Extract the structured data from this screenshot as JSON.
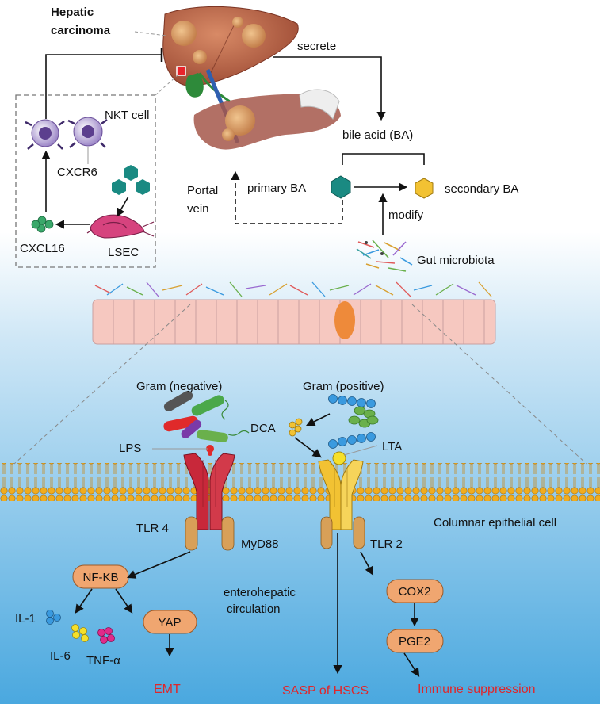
{
  "labels": {
    "hepatic_carcinoma_1": "Hepatic",
    "hepatic_carcinoma_2": "carcinoma",
    "secrete": "secrete",
    "nkt_cell": "NKT cell",
    "bile_acid": "bile acid (BA)",
    "cxcr6": "CXCR6",
    "portal_vein_1": "Portal",
    "portal_vein_2": "vein",
    "primary_ba": "primary BA",
    "secondary_ba": "secondary BA",
    "modify": "modify",
    "cxcl16": "CXCL16",
    "lsec": "LSEC",
    "gut_microbiota": "Gut microbiota",
    "gram_negative": "Gram (negative)",
    "gram_positive": "Gram (positive)",
    "dca": "DCA",
    "lps": "LPS",
    "lta": "LTA",
    "columnar_epithelial_cell": "Columnar epithelial cell",
    "tlr4": "TLR 4",
    "myd88": "MyD88",
    "tlr2": "TLR 2",
    "nfkb": "NF-KB",
    "il1": "IL-1",
    "il6": "IL-6",
    "tnfa": "TNF-α",
    "yap": "YAP",
    "emt": "EMT",
    "enterohepatic_1": "enterohepatic",
    "enterohepatic_2": "circulation",
    "cox2": "COX2",
    "pge2": "PGE2",
    "sasp": "SASP of HSCS",
    "immune_suppression": "Immune suppression"
  },
  "colors": {
    "background_top": "#ffffff",
    "background_bottom": "#4aa8df",
    "box_fill": "#f0a670",
    "box_stroke": "#9a5a2a",
    "outcome_red": "#e0262a",
    "tlr4": "#c8283a",
    "tlr2": "#f2c233",
    "primary_ba": "#1a8a82",
    "secondary_ba": "#f2c233"
  }
}
